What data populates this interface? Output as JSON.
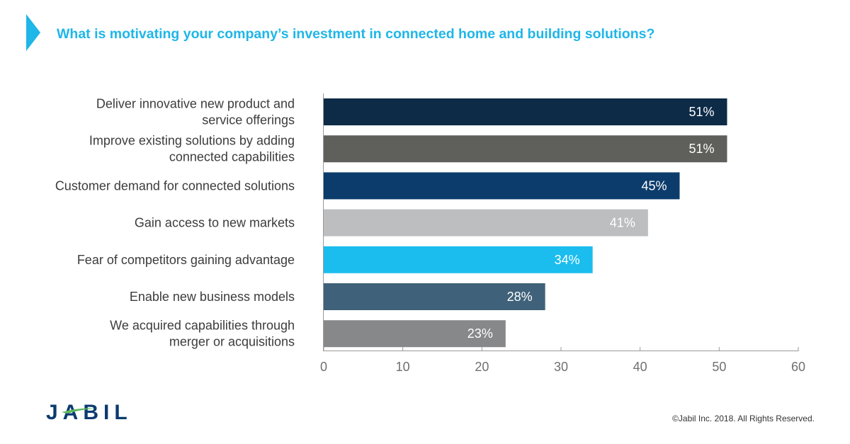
{
  "title": "What is motivating your company’s investment in connected home and building solutions?",
  "brand": {
    "accent": "#1fb6e8",
    "logo_text": "JABIL",
    "logo_color": "#0c3a70",
    "logo_swoosh": "#5cb85c"
  },
  "copyright": "©Jabil Inc. 2018. All Rights Reserved.",
  "chart_data": {
    "type": "bar",
    "orientation": "horizontal",
    "categories": [
      [
        "Deliver innovative new product and",
        "service offerings"
      ],
      [
        "Improve existing solutions by adding",
        "connected capabilities"
      ],
      [
        "Customer demand for connected solutions"
      ],
      [
        "Gain access to new markets"
      ],
      [
        "Fear of competitors gaining advantage"
      ],
      [
        "Enable new business models"
      ],
      [
        "We acquired capabilities through",
        "merger or acquisitions"
      ]
    ],
    "values": [
      51,
      51,
      45,
      41,
      34,
      28,
      23
    ],
    "value_labels": [
      "51%",
      "51%",
      "45%",
      "41%",
      "34%",
      "28%",
      "23%"
    ],
    "bar_colors": [
      "#0d2b47",
      "#5f605b",
      "#0b3c6b",
      "#bcbec0",
      "#1bbdee",
      "#3f6179",
      "#87888a"
    ],
    "xlim": [
      0,
      60
    ],
    "xticks": [
      0,
      10,
      20,
      30,
      40,
      50,
      60
    ],
    "grid": false
  }
}
